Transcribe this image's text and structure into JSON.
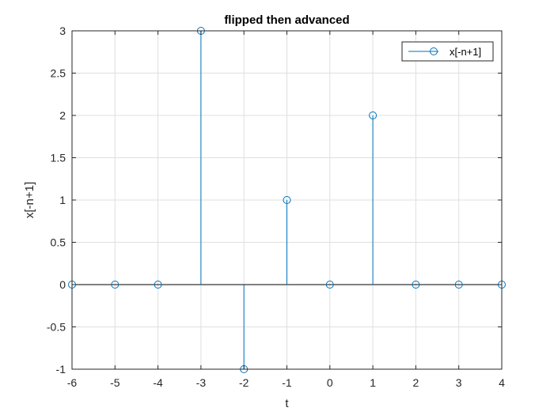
{
  "chart_data": {
    "type": "stem",
    "title": "flipped then advanced",
    "xlabel": "t",
    "ylabel": "x[-n+1]",
    "xlim": [
      -6,
      4
    ],
    "ylim": [
      -1,
      3
    ],
    "xticks": [
      "-6",
      "-5",
      "-4",
      "-3",
      "-2",
      "-1",
      "0",
      "1",
      "2",
      "3",
      "4"
    ],
    "yticks": [
      "-1",
      "-0.5",
      "0",
      "0.5",
      "1",
      "1.5",
      "2",
      "2.5",
      "3"
    ],
    "grid": true,
    "legend_position": "top-right",
    "series": [
      {
        "name": "x[-n+1]",
        "color": "#0072BD",
        "marker": "circle",
        "x": [
          -6,
          -5,
          -4,
          -3,
          -2,
          -1,
          0,
          1,
          2,
          3,
          4
        ],
        "y": [
          0,
          0,
          0,
          3,
          -1,
          1,
          0,
          2,
          0,
          0,
          0
        ]
      }
    ]
  }
}
